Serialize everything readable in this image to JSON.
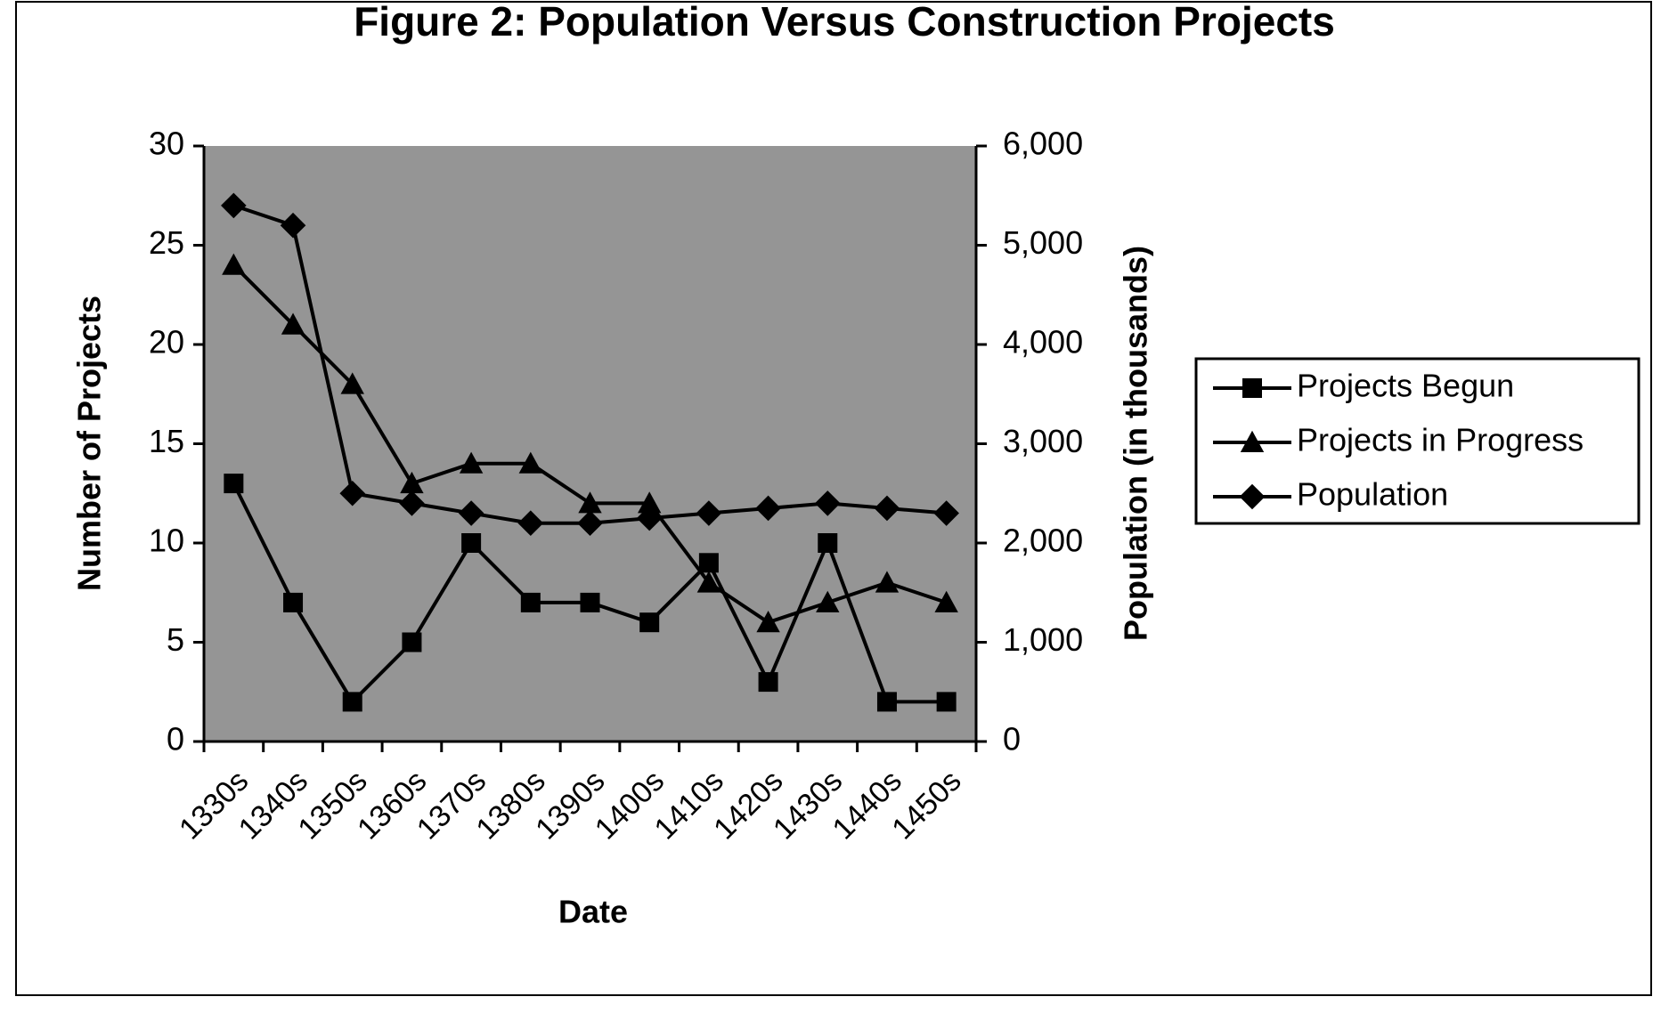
{
  "chart_data": {
    "type": "line",
    "title": "Figure 2: Population Versus Construction Projects",
    "x_label": "Date",
    "y_label": "Number of Projects",
    "y2_label": "Population (in thousands)",
    "categories": [
      "1330s",
      "1340s",
      "1350s",
      "1360s",
      "1370s",
      "1380s",
      "1390s",
      "1400s",
      "1410s",
      "1420s",
      "1430s",
      "1440s",
      "1450s"
    ],
    "series": [
      {
        "name": "Projects Begun",
        "color": "#000000",
        "marker": "square",
        "values": [
          13,
          7,
          2,
          5,
          10,
          7,
          7,
          6,
          9,
          3,
          10,
          2,
          2
        ]
      },
      {
        "name": "Projects in Progress",
        "color": "#000000",
        "marker": "triangle",
        "values": [
          24,
          21,
          18,
          13,
          14,
          14,
          12,
          12,
          8,
          6,
          7,
          8,
          7
        ]
      },
      {
        "name": "Population",
        "color": "#000000",
        "marker": "diamond",
        "axis": "y2",
        "values": [
          5400,
          5200,
          2500,
          2400,
          2300,
          2200,
          2200,
          2250,
          2300,
          2350,
          2400,
          2350,
          2300
        ]
      }
    ],
    "ylim": [
      0,
      30
    ],
    "yticks": [
      0,
      5,
      10,
      15,
      20,
      25,
      30
    ],
    "y2lim": [
      0,
      6000
    ],
    "y2ticks": [
      0,
      {
        "value": 1000,
        "label": "1,000"
      },
      {
        "value": 2000,
        "label": "2,000"
      },
      {
        "value": 3000,
        "label": "3,000"
      },
      {
        "value": 4000,
        "label": "4,000"
      },
      {
        "value": 5000,
        "label": "5,000"
      },
      {
        "value": 6000,
        "label": "6,000"
      }
    ],
    "legend": "right",
    "grid": false
  }
}
